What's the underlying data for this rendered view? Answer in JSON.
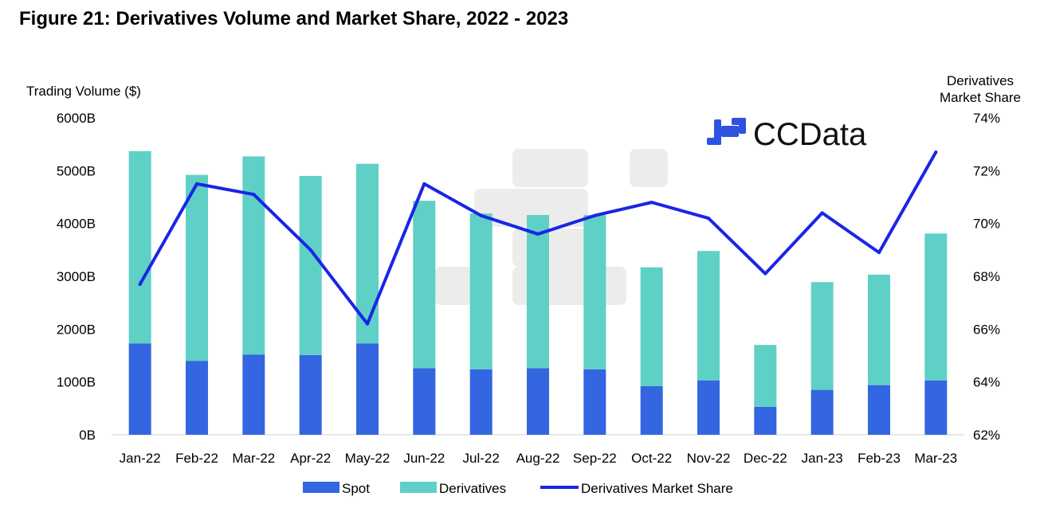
{
  "title": "Figure 21: Derivatives Volume and Market Share, 2022 - 2023",
  "logo": {
    "text": "CCData",
    "icon": "ccdata-logo-icon",
    "color": "#2d53e0"
  },
  "chart_data": {
    "type": "bar",
    "stacked": true,
    "categories": [
      "Jan-22",
      "Feb-22",
      "Mar-22",
      "Apr-22",
      "May-22",
      "Jun-22",
      "Jul-22",
      "Aug-22",
      "Sep-22",
      "Oct-22",
      "Nov-22",
      "Dec-22",
      "Jan-23",
      "Feb-23",
      "Mar-23"
    ],
    "series": [
      {
        "name": "Spot",
        "type": "bar",
        "axis": "left",
        "color": "#3366e0",
        "values": [
          1730,
          1400,
          1520,
          1510,
          1730,
          1260,
          1240,
          1260,
          1240,
          920,
          1030,
          530,
          850,
          940,
          1030
        ]
      },
      {
        "name": "Derivatives",
        "type": "bar",
        "axis": "left",
        "color": "#5fd0c5",
        "values": [
          3640,
          3520,
          3750,
          3390,
          3400,
          3170,
          2950,
          2900,
          2920,
          2250,
          2450,
          1170,
          2040,
          2090,
          2780
        ]
      },
      {
        "name": "Derivatives Market Share",
        "type": "line",
        "axis": "right",
        "color": "#1a25e6",
        "values": [
          67.7,
          71.5,
          71.1,
          69.0,
          66.2,
          71.5,
          70.3,
          69.6,
          70.3,
          70.8,
          70.2,
          68.1,
          70.4,
          68.9,
          72.7
        ]
      }
    ],
    "ylabel_left": "Trading Volume ($)",
    "ylabel_right": "Derivatives Market Share",
    "ylim_left": [
      0,
      6000
    ],
    "yticks_left": [
      "0B",
      "1000B",
      "2000B",
      "3000B",
      "4000B",
      "5000B",
      "6000B"
    ],
    "ylim_right": [
      62,
      74
    ],
    "yticks_right": [
      "62%",
      "64%",
      "66%",
      "68%",
      "70%",
      "72%",
      "74%"
    ],
    "grid": false,
    "legend_position": "bottom"
  }
}
